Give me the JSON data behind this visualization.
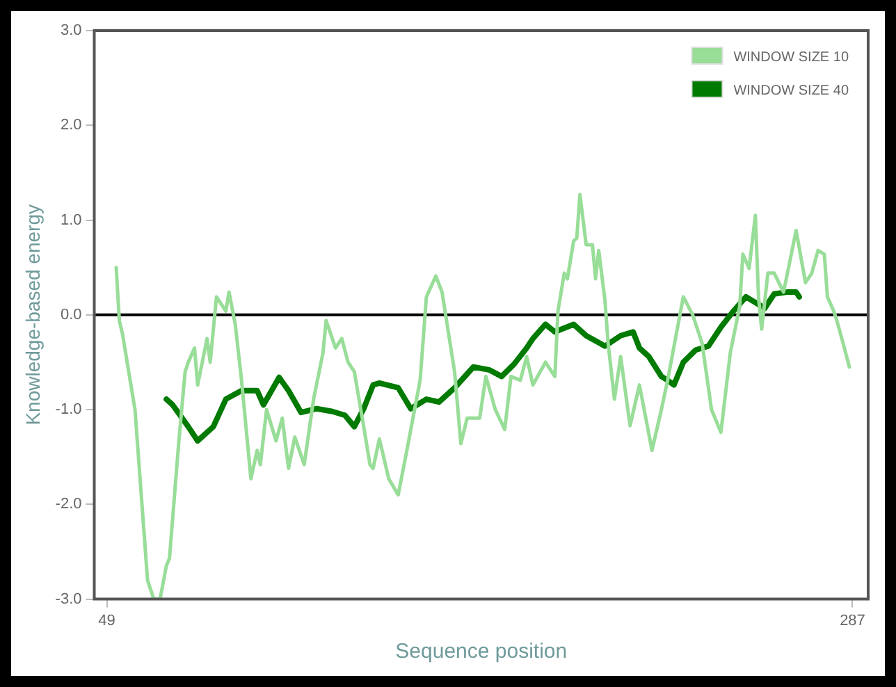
{
  "chart_data": {
    "type": "line",
    "xlabel": "Sequence position",
    "ylabel": "Knowledge-based energy",
    "xlim": [
      45,
      292
    ],
    "xticks": [
      49,
      287
    ],
    "ylim": [
      -3,
      3
    ],
    "yticks": [
      {
        "value": -3,
        "label": "-3.0"
      },
      {
        "value": -2,
        "label": "-2.0"
      },
      {
        "value": -1,
        "label": "-1.0"
      },
      {
        "value": 0,
        "label": "0.0"
      },
      {
        "value": 1,
        "label": "1.0"
      },
      {
        "value": 2,
        "label": "2.0"
      },
      {
        "value": 3,
        "label": "3.0"
      }
    ],
    "grid": false,
    "legend": "top right",
    "marker": "none",
    "line_style": "solid",
    "ref_lines": [
      {
        "axis": "y",
        "value": 0,
        "color": "#000000"
      }
    ],
    "series": [
      {
        "name": "WINDOW SIZE 10",
        "color": "#98dd98",
        "x": [
          52,
          53,
          54,
          58,
          62,
          64,
          66,
          68,
          69,
          72,
          74,
          75,
          77,
          78,
          81,
          82,
          84,
          87,
          88,
          90,
          92,
          95,
          97,
          98,
          100,
          103,
          105,
          107,
          109,
          112,
          115,
          118,
          119,
          122,
          124,
          126,
          128,
          131,
          133,
          134,
          136,
          139,
          142,
          145,
          149,
          151,
          154,
          156,
          160,
          162,
          164,
          168,
          170,
          173,
          176,
          178,
          181,
          183,
          185,
          189,
          192,
          193,
          195,
          196,
          198,
          199,
          200,
          202,
          204,
          205,
          206,
          208,
          209,
          211,
          213,
          216,
          219,
          223,
          226,
          228,
          233,
          236,
          239,
          242,
          245,
          248,
          251,
          252,
          254,
          256,
          257,
          258,
          260,
          262,
          265,
          269,
          272,
          274,
          276,
          278,
          279,
          281,
          282,
          284,
          286
        ],
        "values": [
          0.5,
          -0.06,
          -0.2,
          -1.0,
          -2.8,
          -3.0,
          -3.0,
          -2.65,
          -2.57,
          -1.33,
          -0.6,
          -0.5,
          -0.35,
          -0.74,
          -0.25,
          -0.5,
          0.19,
          0.04,
          0.24,
          -0.1,
          -0.69,
          -1.73,
          -1.43,
          -1.58,
          -1.0,
          -1.33,
          -1.09,
          -1.62,
          -1.29,
          -1.58,
          -0.89,
          -0.4,
          -0.06,
          -0.35,
          -0.25,
          -0.5,
          -0.6,
          -1.18,
          -1.58,
          -1.62,
          -1.31,
          -1.73,
          -1.9,
          -1.39,
          -0.69,
          0.19,
          0.41,
          0.24,
          -0.6,
          -1.36,
          -1.09,
          -1.09,
          -0.65,
          -1.0,
          -1.21,
          -0.65,
          -0.69,
          -0.44,
          -0.74,
          -0.5,
          -0.65,
          0.04,
          0.44,
          0.38,
          0.78,
          0.81,
          1.27,
          0.74,
          0.74,
          0.38,
          0.68,
          0.15,
          -0.3,
          -0.89,
          -0.44,
          -1.17,
          -0.74,
          -1.43,
          -1.0,
          -0.69,
          0.19,
          0.0,
          -0.3,
          -1.0,
          -1.24,
          -0.4,
          0.09,
          0.64,
          0.49,
          1.05,
          0.19,
          -0.15,
          0.44,
          0.44,
          0.24,
          0.89,
          0.34,
          0.44,
          0.68,
          0.64,
          0.19,
          0.04,
          -0.06,
          -0.3,
          -0.55
        ]
      },
      {
        "name": "WINDOW SIZE 40",
        "color": "#007a00",
        "x": [
          68,
          70,
          75,
          78,
          83,
          87,
          92,
          97,
          99,
          104,
          107,
          111,
          116,
          121,
          125,
          128,
          131,
          134,
          136,
          142,
          146,
          151,
          155,
          160,
          166,
          171,
          175,
          179,
          183,
          185,
          189,
          192,
          198,
          202,
          208,
          213,
          217,
          219,
          222,
          226,
          228,
          230,
          233,
          237,
          241,
          245,
          249,
          253,
          259,
          262,
          266,
          269,
          270
        ],
        "values": [
          -0.89,
          -0.95,
          -1.18,
          -1.33,
          -1.18,
          -0.89,
          -0.8,
          -0.8,
          -0.95,
          -0.66,
          -0.8,
          -1.03,
          -0.99,
          -1.02,
          -1.06,
          -1.18,
          -0.99,
          -0.74,
          -0.72,
          -0.77,
          -0.99,
          -0.89,
          -0.92,
          -0.77,
          -0.55,
          -0.58,
          -0.65,
          -0.52,
          -0.35,
          -0.25,
          -0.1,
          -0.18,
          -0.1,
          -0.22,
          -0.33,
          -0.22,
          -0.18,
          -0.35,
          -0.44,
          -0.65,
          -0.69,
          -0.74,
          -0.5,
          -0.37,
          -0.33,
          -0.13,
          0.04,
          0.19,
          0.07,
          0.22,
          0.24,
          0.24,
          0.19
        ]
      }
    ]
  }
}
